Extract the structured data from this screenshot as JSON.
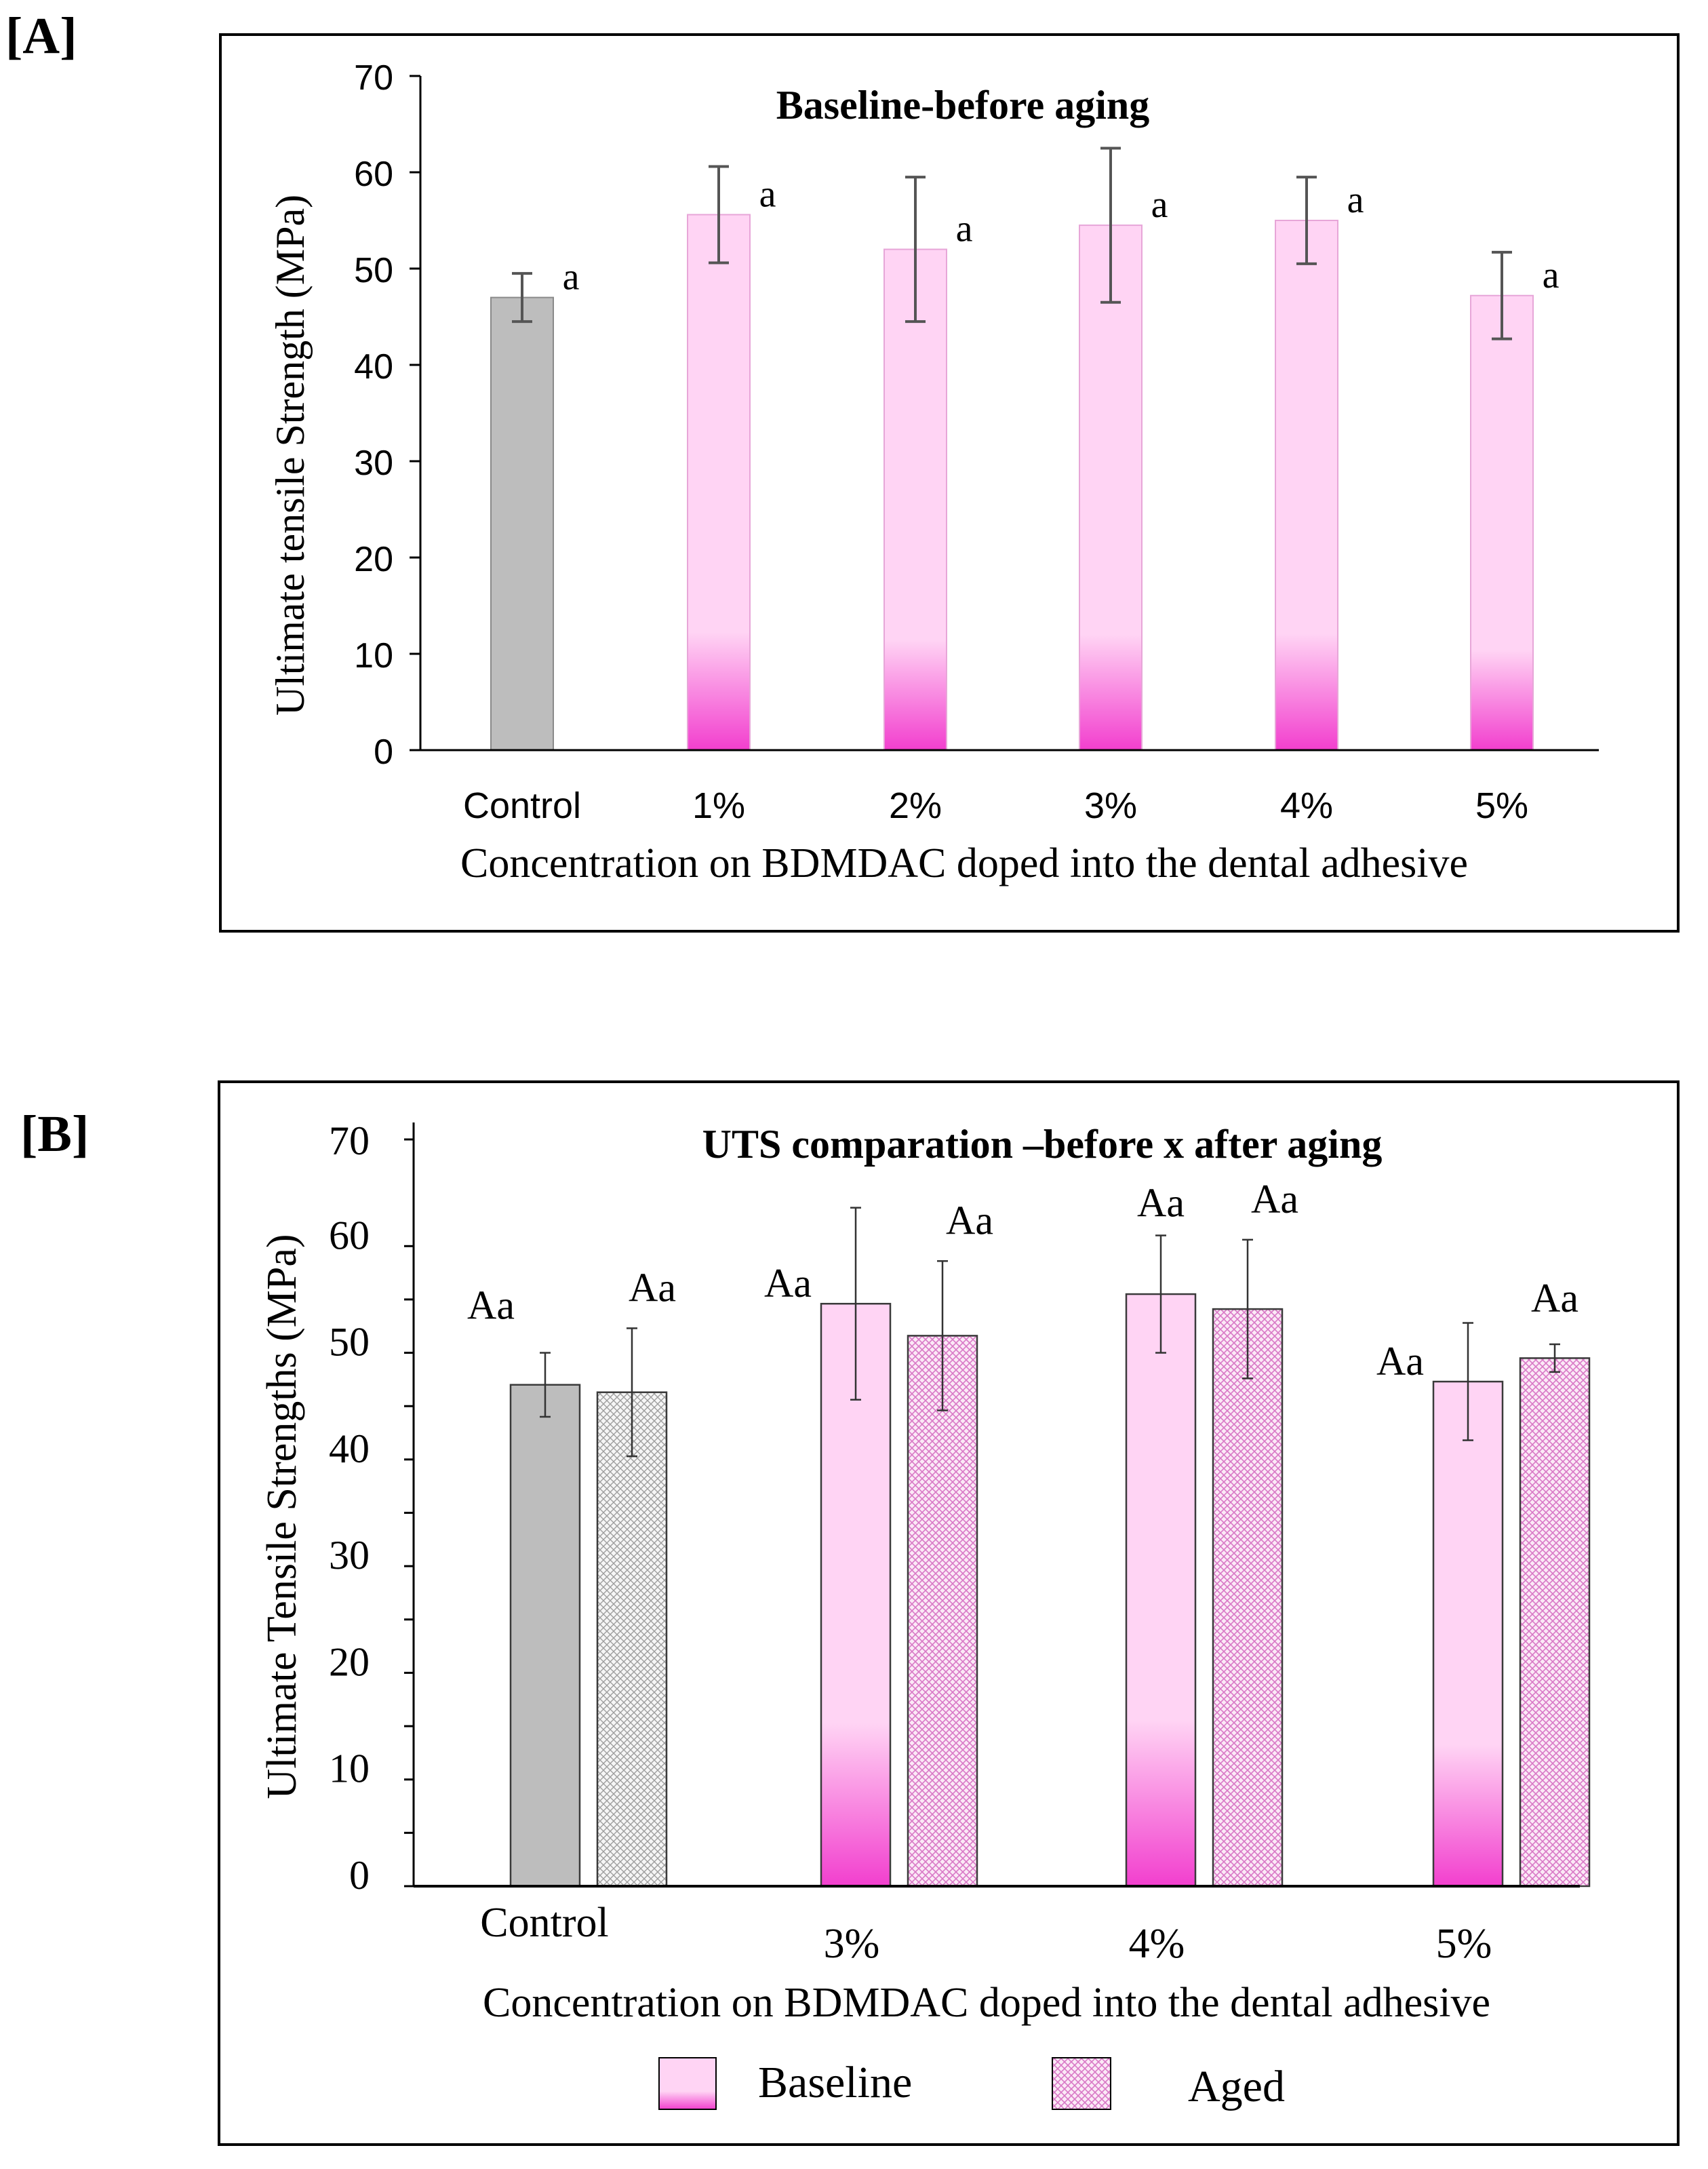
{
  "panels": {
    "a": {
      "label": "[A]"
    },
    "b": {
      "label": "[B]"
    }
  },
  "colors": {
    "control": "#bdbdbd",
    "control_edge": "#8a8a8a",
    "pink_light": "#ffd4f4",
    "pink_dark": "#f23fce",
    "axis": "#000000",
    "error": "#555555",
    "hatch": "#d978c6",
    "hatch_grey": "#9e9e9e"
  },
  "chart_data": [
    {
      "type": "bar",
      "title": "Baseline-before aging",
      "xlabel": "Concentration on BDMDAC doped into the dental adhesive",
      "ylabel": "Ultimate tensile Strength (MPa)",
      "ylim": [
        0,
        70
      ],
      "yticks": [
        "0",
        "10",
        "20",
        "30",
        "40",
        "50",
        "60",
        "70"
      ],
      "categories": [
        "Control",
        "1%",
        "2%",
        "3%",
        "4%",
        "5%"
      ],
      "series": [
        {
          "name": "Baseline",
          "values": [
            47.0,
            55.6,
            52.0,
            54.5,
            55.0,
            47.2
          ],
          "errors": [
            2.5,
            5.0,
            7.5,
            8.0,
            4.5,
            4.5
          ],
          "annotations": [
            "a",
            "a",
            "a",
            "a",
            "a",
            "a"
          ]
        }
      ],
      "legend": "none",
      "grid": false
    },
    {
      "type": "bar",
      "title": "UTS comparation –before x after aging",
      "xlabel": "Concentration on BDMDAC doped into the dental adhesive",
      "ylabel": "Ultimate Tensile Strengths (MPa)",
      "ylim": [
        0,
        70
      ],
      "yticks": [
        "0",
        "10",
        "20",
        "30",
        "40",
        "50",
        "60",
        "70"
      ],
      "categories": [
        "Control",
        "3%",
        "4%",
        "5%"
      ],
      "series": [
        {
          "name": "Baseline",
          "values": [
            47.0,
            54.6,
            55.5,
            47.3
          ],
          "errors": [
            3.0,
            9.0,
            5.5,
            5.5
          ],
          "annotations": [
            "Aa",
            "Aa",
            "Aa",
            "Aa"
          ]
        },
        {
          "name": "Aged",
          "values": [
            46.3,
            51.6,
            54.1,
            49.5
          ],
          "errors": [
            6.0,
            7.0,
            6.5,
            1.3
          ],
          "annotations": [
            "Aa",
            "Aa",
            "Aa",
            "Aa"
          ]
        }
      ],
      "legend": "bottom",
      "grid": false
    }
  ]
}
